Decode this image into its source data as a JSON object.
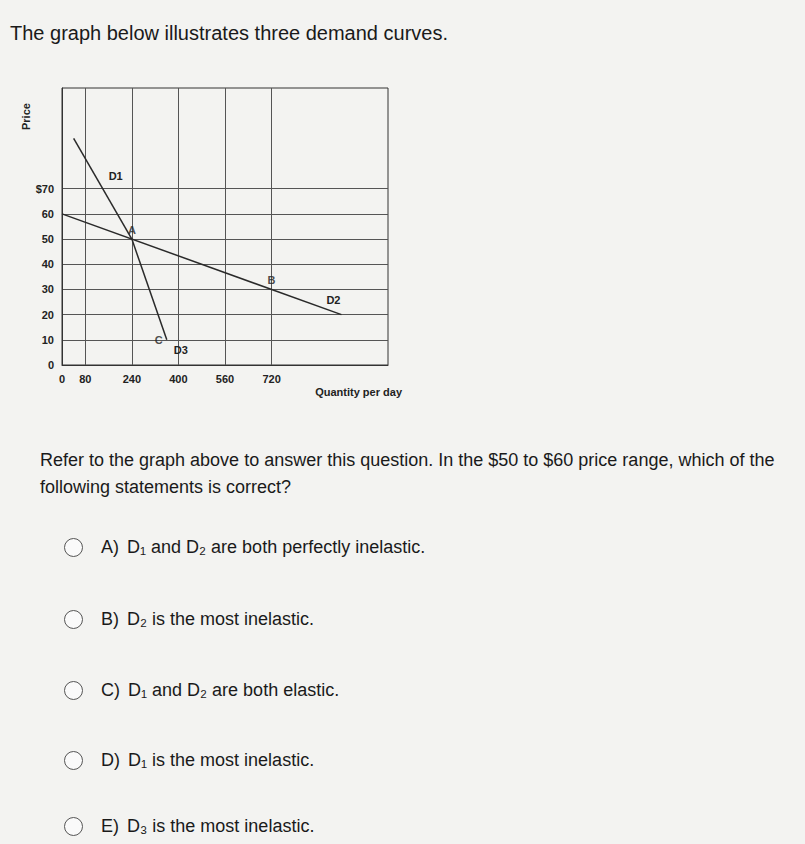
{
  "header": {
    "title": "The graph below illustrates three demand curves."
  },
  "chart_data": {
    "type": "line",
    "x_label": "Quantity per day",
    "y_label": "Price",
    "xlim": [
      0,
      1120
    ],
    "ylim": [
      0,
      110
    ],
    "xticks": [
      0,
      80,
      240,
      400,
      560,
      720
    ],
    "yticks": [
      0,
      10,
      20,
      30,
      40,
      50,
      60,
      {
        "value": 70,
        "label": "$70"
      }
    ],
    "grid": true,
    "series": [
      {
        "name": "D1",
        "color": "#2a2a2a",
        "x": [
          40,
          240
        ],
        "values": [
          90,
          50
        ]
      },
      {
        "name": "D2",
        "color": "#2a2a2a",
        "x": [
          0,
          960
        ],
        "values": [
          60,
          20
        ]
      },
      {
        "name": "D3",
        "color": "#2a2a2a",
        "x": [
          240,
          360
        ],
        "values": [
          50,
          10
        ]
      }
    ],
    "annotations": [
      {
        "text": "A",
        "x": 240,
        "y": 50
      },
      {
        "text": "B",
        "x": 720,
        "y": 30
      },
      {
        "text": "C",
        "x": 360,
        "y": 10
      }
    ]
  },
  "question": {
    "text": "Refer to the graph above to answer this question. In the $50 to $60 price range, which of the following statements is correct?",
    "options": [
      {
        "letter": "A)",
        "text": "D₁ and D₂ are both perfectly inelastic."
      },
      {
        "letter": "B)",
        "text": "D₂ is the most inelastic."
      },
      {
        "letter": "C)",
        "text": "D₁ and D₂ are both elastic."
      },
      {
        "letter": "D)",
        "text": "D₁ is the most inelastic."
      },
      {
        "letter": "E)",
        "text": "D₃ is the most inelastic."
      }
    ]
  }
}
